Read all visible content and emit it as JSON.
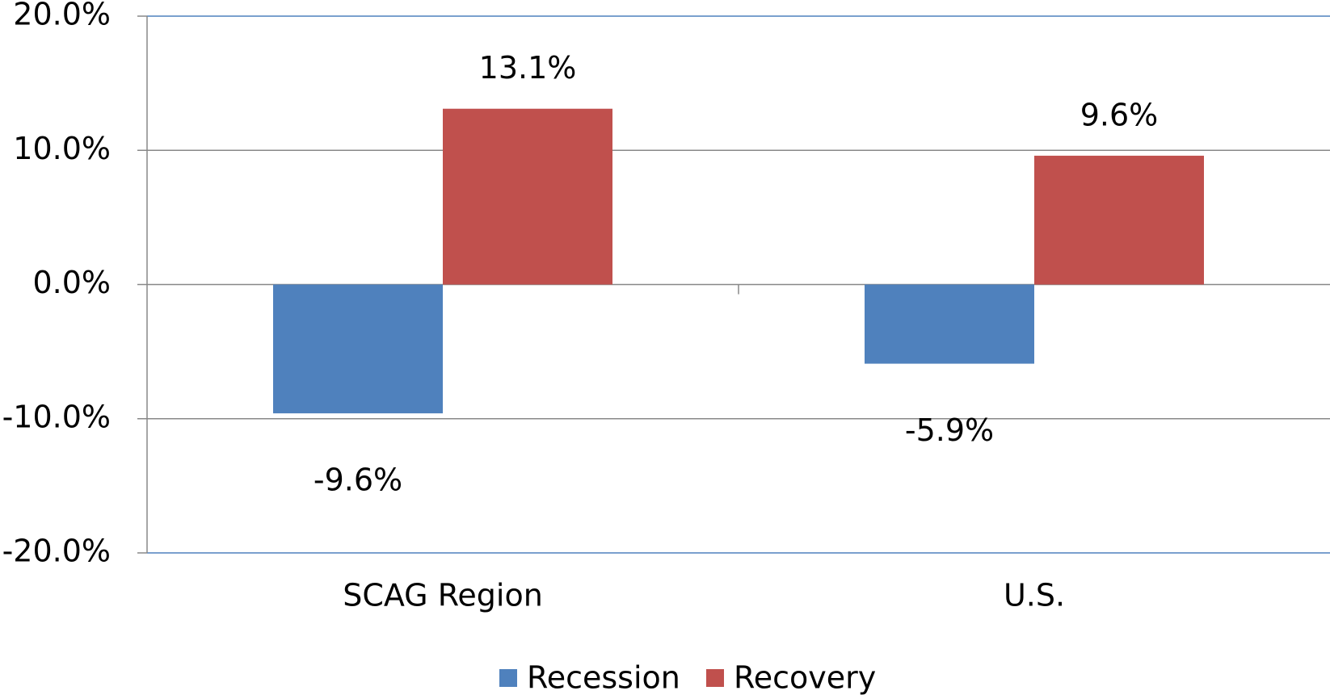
{
  "chart_data": {
    "type": "bar",
    "categories": [
      "SCAG Region",
      "U.S."
    ],
    "series": [
      {
        "name": "Recession",
        "color": "#4f81bd",
        "values": [
          -9.6,
          -5.9
        ],
        "value_labels": [
          "-9.6%",
          "-5.9%"
        ]
      },
      {
        "name": "Recovery",
        "color": "#c0504d",
        "values": [
          13.1,
          9.6
        ],
        "value_labels": [
          "13.1%",
          "9.6%"
        ]
      }
    ],
    "ylim": [
      -20,
      20
    ],
    "yticks": [
      {
        "value": -20,
        "label": "-20.0%"
      },
      {
        "value": -10,
        "label": "-10.0%"
      },
      {
        "value": 0,
        "label": "0.0%"
      },
      {
        "value": 10,
        "label": "10.0%"
      },
      {
        "value": 20,
        "label": "20.0%"
      }
    ],
    "grid": true,
    "legend": "bottom"
  }
}
